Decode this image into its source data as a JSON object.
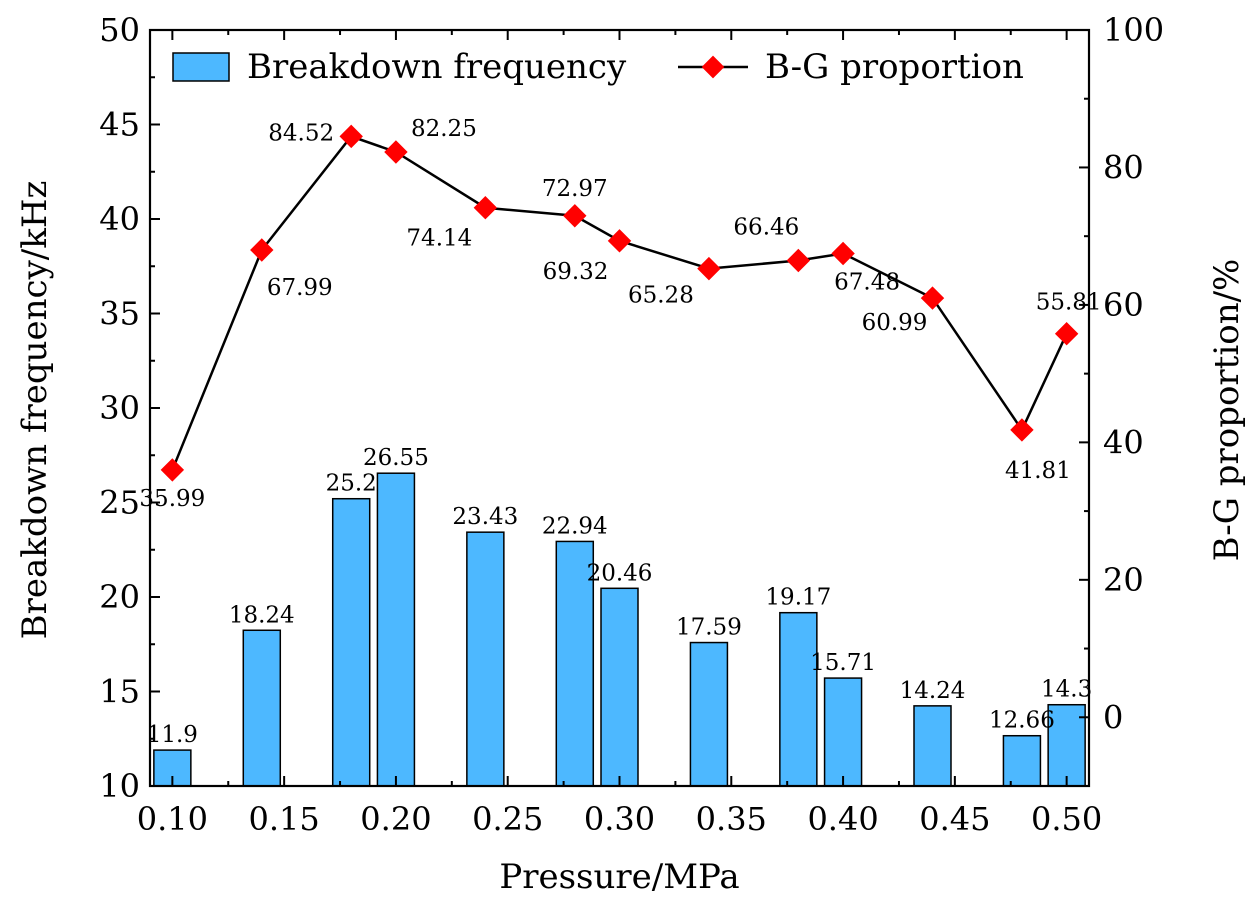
{
  "chart_data": {
    "type": "bar",
    "xlabel": "Pressure/MPa",
    "ylabel": "Breakdown frequency/kHz",
    "y2label": "B-G proportion/%",
    "xlim": [
      0.09,
      0.51
    ],
    "ylim": [
      10,
      50
    ],
    "y2lim": [
      -10,
      100
    ],
    "x_ticks": [
      "0.10",
      "0.15",
      "0.20",
      "0.25",
      "0.30",
      "0.35",
      "0.40",
      "0.45",
      "0.50"
    ],
    "y_ticks": [
      10,
      15,
      20,
      25,
      30,
      35,
      40,
      45,
      50
    ],
    "y2_ticks": [
      0,
      20,
      40,
      60,
      80,
      100
    ],
    "legend_position": "top",
    "colors": {
      "bar": "#4db8ff",
      "marker": "#ff0000",
      "line": "#000000"
    },
    "series": [
      {
        "name": "Breakdown frequency",
        "kind": "bar",
        "axis": "left",
        "x": [
          0.1,
          0.14,
          0.18,
          0.2,
          0.24,
          0.28,
          0.3,
          0.34,
          0.38,
          0.4,
          0.44,
          0.48,
          0.5
        ],
        "values": [
          11.9,
          18.24,
          25.2,
          26.55,
          23.43,
          22.94,
          20.46,
          17.59,
          19.17,
          15.71,
          14.24,
          12.66,
          14.3
        ],
        "labels": [
          "11.9",
          "18.24",
          "25.2",
          "26.55",
          "23.43",
          "22.94",
          "20.46",
          "17.59",
          "19.17",
          "15.71",
          "14.24",
          "12.66",
          "14.3"
        ]
      },
      {
        "name": "B-G proportion",
        "kind": "line",
        "axis": "right",
        "x": [
          0.1,
          0.14,
          0.18,
          0.2,
          0.24,
          0.28,
          0.3,
          0.34,
          0.38,
          0.4,
          0.44,
          0.48,
          0.5
        ],
        "values": [
          35.99,
          67.99,
          84.52,
          82.25,
          74.14,
          72.97,
          69.32,
          65.28,
          66.46,
          67.48,
          60.99,
          41.81,
          55.81
        ],
        "labels": [
          "35.99",
          "67.99",
          "84.52",
          "82.25",
          "74.14",
          "72.97",
          "69.32",
          "65.28",
          "66.46",
          "67.48",
          "60.99",
          "41.81",
          "55.81"
        ]
      }
    ]
  }
}
